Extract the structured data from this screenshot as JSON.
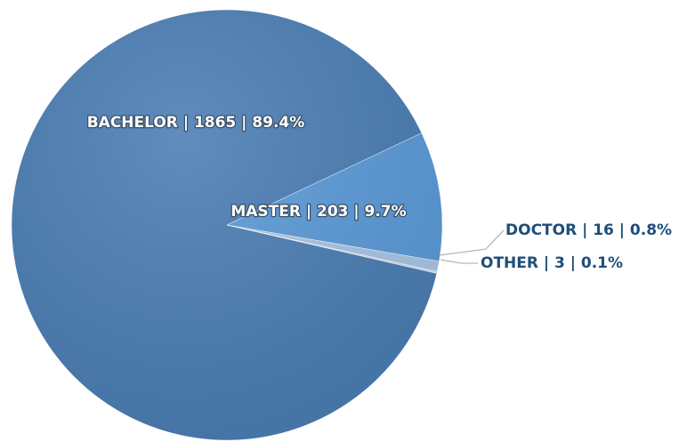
{
  "chart_data": {
    "type": "pie",
    "values": [
      1865,
      203,
      16,
      3
    ],
    "value_labels": [
      "BACHELOR | 1865 | 89.4%",
      "MASTER | 203 | 9.7%",
      "DOCTOR | 16 | 0.8%",
      "OTHER | 3 | 0.1%"
    ],
    "colors": [
      "#4a7db3",
      "#5b9ad8",
      "#a9c5e6",
      "#cfdcee"
    ]
  }
}
